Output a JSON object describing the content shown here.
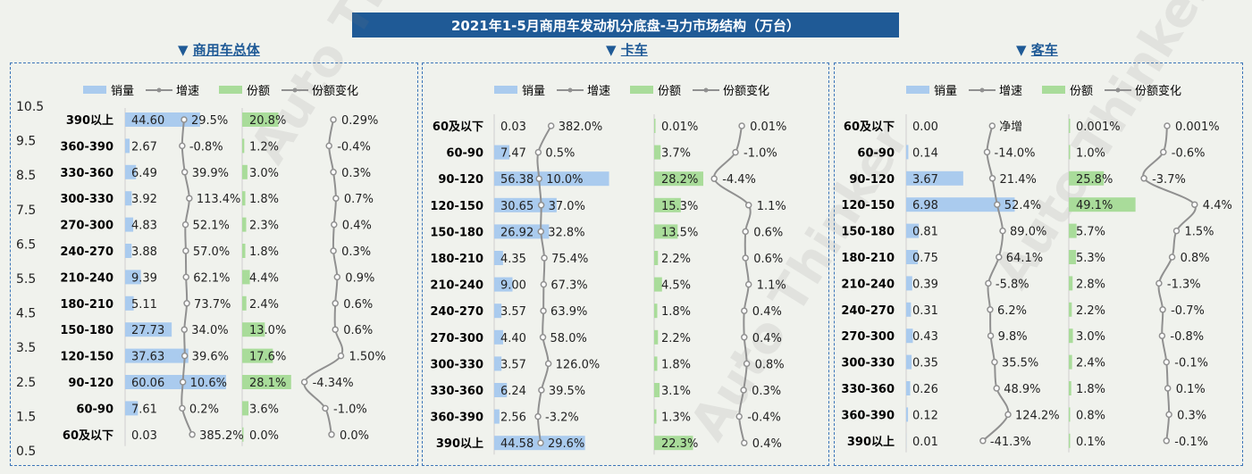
{
  "title": "2021年1-5月商用车发动机分底盘-马力市场结构（万台）",
  "legend": {
    "sales": "销量",
    "growth": "增速",
    "share": "份额",
    "share_change": "份额变化"
  },
  "watermark": "Auto Thinker",
  "colors": {
    "bar": "#aacbee",
    "share_bar": "#a9dc9a",
    "line": "#909090",
    "title_bg": "#1f5a96",
    "border": "#3a74b8"
  },
  "chart_data": [
    {
      "type": "bar",
      "panel": "商用车总体",
      "title": "商用车总体",
      "yaxis_ticks": [
        "10.5",
        "9.5",
        "8.5",
        "7.5",
        "6.5",
        "5.5",
        "4.5",
        "3.5",
        "2.5",
        "1.5",
        "0.5"
      ],
      "categories": [
        "390以上",
        "360-390",
        "330-360",
        "300-330",
        "270-300",
        "240-270",
        "210-240",
        "180-210",
        "150-180",
        "120-150",
        "90-120",
        "60-90",
        "60及以下"
      ],
      "series": [
        {
          "name": "销量",
          "values": [
            44.6,
            2.67,
            6.49,
            3.92,
            4.83,
            3.88,
            9.39,
            5.11,
            27.73,
            37.63,
            60.06,
            7.61,
            0.03
          ]
        },
        {
          "name": "增速",
          "values": [
            "29.5%",
            "-0.8%",
            "39.9%",
            "113.4%",
            "52.1%",
            "57.0%",
            "62.1%",
            "73.7%",
            "34.0%",
            "39.6%",
            "10.6%",
            "0.2%",
            "385.2%"
          ]
        },
        {
          "name": "份额",
          "values": [
            "20.8%",
            "1.2%",
            "3.0%",
            "1.8%",
            "2.3%",
            "1.8%",
            "4.4%",
            "2.4%",
            "13.0%",
            "17.6%",
            "28.1%",
            "3.6%",
            "0.0%"
          ]
        },
        {
          "name": "份额变化",
          "values": [
            "0.29%",
            "-0.4%",
            "0.3%",
            "0.7%",
            "0.4%",
            "0.3%",
            "0.9%",
            "0.6%",
            "0.6%",
            "1.50%",
            "-4.34%",
            "-1.0%",
            "0.0%"
          ]
        }
      ]
    },
    {
      "type": "bar",
      "panel": "卡车",
      "title": "卡车",
      "categories": [
        "60及以下",
        "60-90",
        "90-120",
        "120-150",
        "150-180",
        "180-210",
        "210-240",
        "240-270",
        "270-300",
        "300-330",
        "330-360",
        "360-390",
        "390以上"
      ],
      "series": [
        {
          "name": "销量",
          "values": [
            0.03,
            7.47,
            56.38,
            30.65,
            26.92,
            4.35,
            9.0,
            3.57,
            4.4,
            3.57,
            6.24,
            2.56,
            44.58
          ]
        },
        {
          "name": "增速",
          "values": [
            "382.0%",
            "0.5%",
            "10.0%",
            "37.0%",
            "32.8%",
            "75.4%",
            "67.3%",
            "63.9%",
            "58.0%",
            "126.0%",
            "39.5%",
            "-3.2%",
            "29.6%"
          ]
        },
        {
          "name": "份额",
          "values": [
            "0.01%",
            "3.7%",
            "28.2%",
            "15.3%",
            "13.5%",
            "2.2%",
            "4.5%",
            "1.8%",
            "2.2%",
            "1.8%",
            "3.1%",
            "1.3%",
            "22.3%"
          ]
        },
        {
          "name": "份额变化",
          "values": [
            "0.01%",
            "-1.0%",
            "-4.4%",
            "1.1%",
            "0.6%",
            "0.6%",
            "1.1%",
            "0.4%",
            "0.4%",
            "0.8%",
            "0.3%",
            "-0.4%",
            "0.4%"
          ]
        }
      ]
    },
    {
      "type": "bar",
      "panel": "客车",
      "title": "客车",
      "categories": [
        "60及以下",
        "60-90",
        "90-120",
        "120-150",
        "150-180",
        "180-210",
        "210-240",
        "240-270",
        "270-300",
        "300-330",
        "330-360",
        "360-390",
        "390以上"
      ],
      "series": [
        {
          "name": "销量",
          "values": [
            0.0,
            0.14,
            3.67,
            6.98,
            0.81,
            0.75,
            0.39,
            0.31,
            0.43,
            0.35,
            0.26,
            0.12,
            0.01
          ]
        },
        {
          "name": "增速",
          "values": [
            "净增",
            "-14.0%",
            "21.4%",
            "52.4%",
            "89.0%",
            "64.1%",
            "-5.8%",
            "6.2%",
            "9.8%",
            "35.5%",
            "48.9%",
            "124.2%",
            "-41.3%"
          ]
        },
        {
          "name": "份额",
          "values": [
            "0.001%",
            "1.0%",
            "25.8%",
            "49.1%",
            "5.7%",
            "5.3%",
            "2.8%",
            "2.2%",
            "3.0%",
            "2.4%",
            "1.8%",
            "0.8%",
            "0.1%"
          ]
        },
        {
          "name": "份额变化",
          "values": [
            "0.001%",
            "-0.6%",
            "-3.7%",
            "4.4%",
            "1.5%",
            "0.8%",
            "-1.3%",
            "-0.7%",
            "-0.8%",
            "-0.1%",
            "0.1%",
            "0.3%",
            "-0.1%"
          ]
        }
      ]
    }
  ]
}
